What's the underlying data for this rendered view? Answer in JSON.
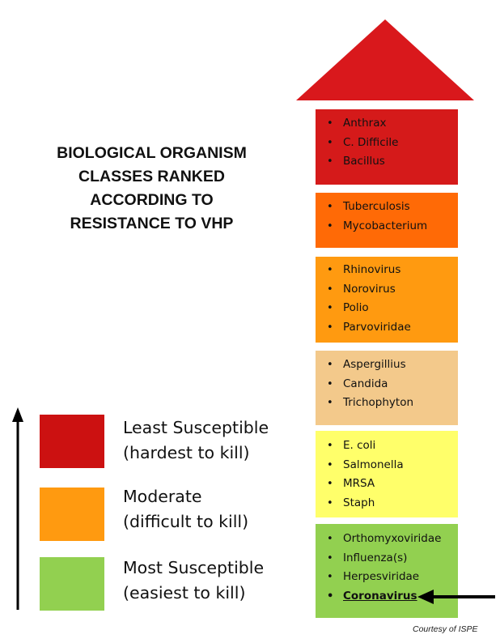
{
  "title": "BIOLOGICAL ORGANISM\nCLASSES RANKED\nACCORDING TO\nRESISTANCE TO VHP",
  "colors": {
    "roof": "#d9181c",
    "dark_red": "#d51a1a",
    "orange_red": "#ff6a06",
    "orange": "#ff9a10",
    "tan": "#f3c98b",
    "yellow": "#ffff6a",
    "green": "#92d050",
    "legend_red": "#cc1111",
    "legend_orange": "#ff9a10",
    "legend_green": "#92d050"
  },
  "tiers": [
    {
      "items": [
        "Anthrax",
        "C. Difficile",
        "Bacillus"
      ]
    },
    {
      "items": [
        "Tuberculosis",
        "Mycobacterium"
      ]
    },
    {
      "items": [
        "Rhinovirus",
        "Norovirus",
        "Polio",
        "Parvoviridae"
      ]
    },
    {
      "items": [
        "Aspergillius",
        "Candida",
        "Trichophyton"
      ]
    },
    {
      "items": [
        "E. coli",
        "Salmonella",
        "MRSA",
        "Staph"
      ]
    },
    {
      "items": [
        "Orthomyxoviridae",
        "Influenza(s)",
        "Herpesviridae",
        "Coronavirus"
      ]
    }
  ],
  "legend": [
    {
      "line1": "Least Susceptible",
      "line2": "(hardest to kill)"
    },
    {
      "line1": "Moderate",
      "line2": "(difficult to kill)"
    },
    {
      "line1": "Most Susceptible",
      "line2": "(easiest to kill)"
    }
  ],
  "credit": "Courtesy of ISPE"
}
